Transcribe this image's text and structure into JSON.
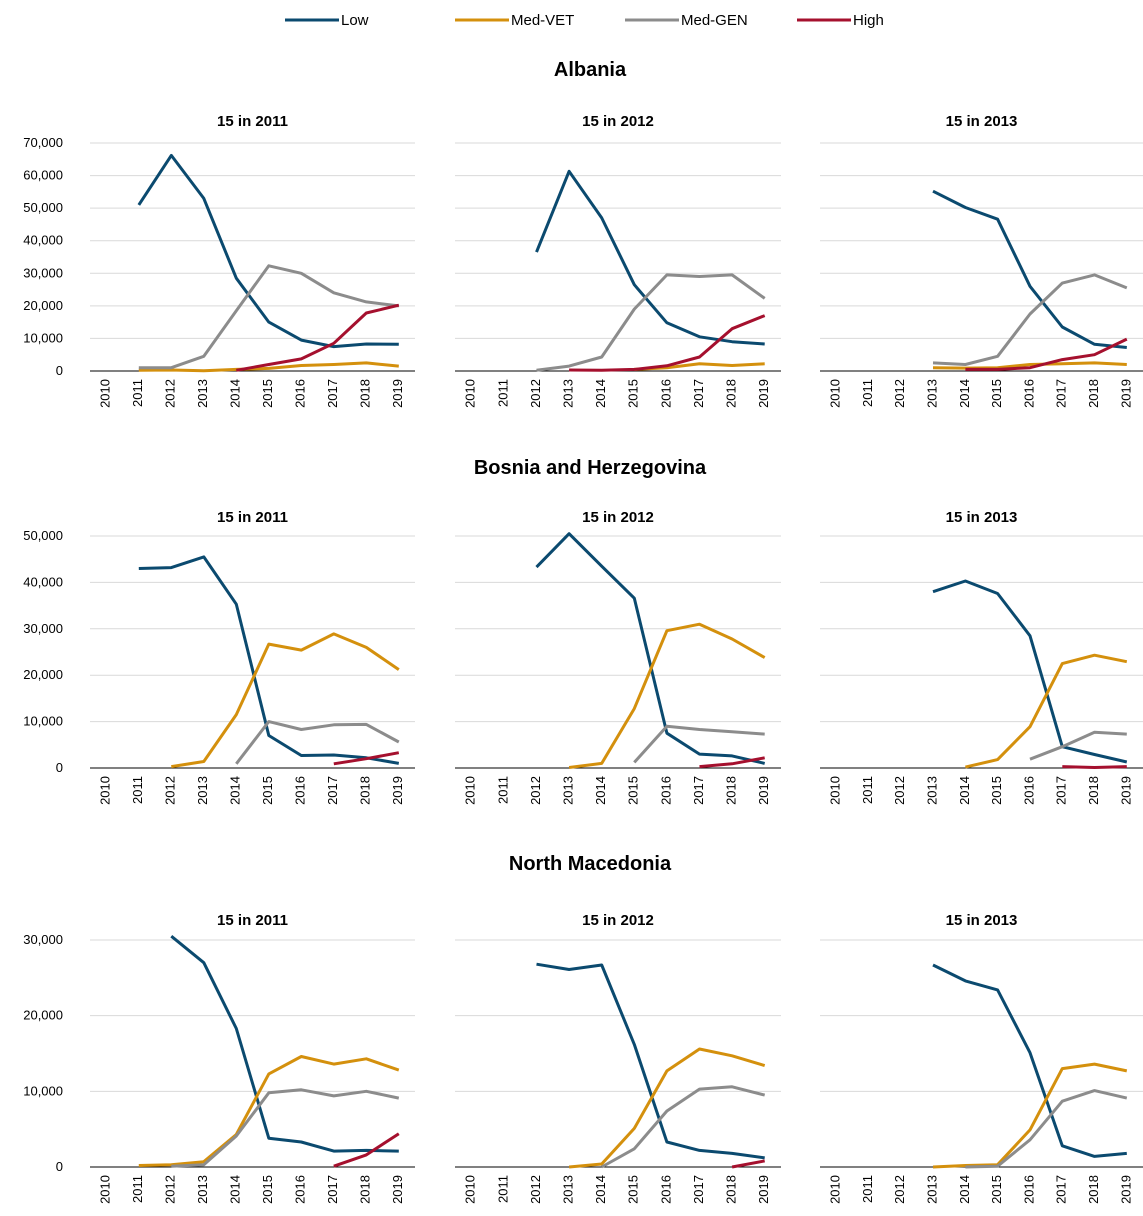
{
  "legend": [
    {
      "key": "low",
      "label": "Low",
      "color": "#0b4a6f"
    },
    {
      "key": "vet",
      "label": "Med-VET",
      "color": "#d4900d"
    },
    {
      "key": "gen",
      "label": "Med-GEN",
      "color": "#8c8c8c"
    },
    {
      "key": "high",
      "label": "High",
      "color": "#a5102e"
    }
  ],
  "chart_data": [
    {
      "type": "line",
      "country": "Albania",
      "ylim": [
        0,
        70000
      ],
      "yticks": [
        "0",
        "10,000",
        "20,000",
        "30,000",
        "40,000",
        "50,000",
        "60,000",
        "70,000"
      ],
      "x": [
        "2010",
        "2011",
        "2012",
        "2013",
        "2014",
        "2015",
        "2016",
        "2017",
        "2018",
        "2019"
      ],
      "panels": [
        {
          "title": "15 in 2011",
          "series": [
            {
              "name": "Low",
              "values": [
                null,
                51000,
                66200,
                53000,
                28500,
                15000,
                9500,
                7500,
                8300,
                8200
              ]
            },
            {
              "name": "Med-VET",
              "values": [
                null,
                200,
                300,
                100,
                500,
                800,
                1700,
                2000,
                2500,
                1500
              ]
            },
            {
              "name": "Med-GEN",
              "values": [
                null,
                1000,
                1000,
                4500,
                18500,
                32300,
                30000,
                24000,
                21200,
                20000
              ]
            },
            {
              "name": "High",
              "values": [
                null,
                null,
                null,
                null,
                200,
                2000,
                3700,
                8500,
                17800,
                20200
              ]
            }
          ]
        },
        {
          "title": "15 in 2012",
          "series": [
            {
              "name": "Low",
              "values": [
                null,
                null,
                36500,
                61300,
                47000,
                26500,
                14800,
                10500,
                9000,
                8300
              ]
            },
            {
              "name": "Med-VET",
              "values": [
                null,
                null,
                null,
                null,
                null,
                500,
                1000,
                2200,
                1700,
                2200
              ]
            },
            {
              "name": "Med-GEN",
              "values": [
                null,
                null,
                200,
                1500,
                4300,
                19000,
                29500,
                29000,
                29500,
                22300
              ]
            },
            {
              "name": "High",
              "values": [
                null,
                null,
                null,
                300,
                200,
                500,
                1600,
                4300,
                13000,
                17000
              ]
            }
          ]
        },
        {
          "title": "15 in 2013",
          "series": [
            {
              "name": "Low",
              "values": [
                null,
                null,
                null,
                55200,
                50200,
                46600,
                26000,
                13500,
                8200,
                7200
              ]
            },
            {
              "name": "Med-VET",
              "values": [
                null,
                null,
                null,
                1000,
                900,
                1000,
                2000,
                2200,
                2500,
                2000
              ]
            },
            {
              "name": "Med-GEN",
              "values": [
                null,
                null,
                null,
                2500,
                2000,
                4500,
                17500,
                27000,
                29500,
                25500
              ]
            },
            {
              "name": "High",
              "values": [
                null,
                null,
                null,
                null,
                500,
                500,
                1000,
                3500,
                5000,
                9800
              ]
            }
          ]
        }
      ]
    },
    {
      "type": "line",
      "country": "Bosnia and Herzegovina",
      "ylim": [
        0,
        50000
      ],
      "yticks": [
        "0",
        "10,000",
        "20,000",
        "30,000",
        "40,000",
        "50,000"
      ],
      "x": [
        "2010",
        "2011",
        "2012",
        "2013",
        "2014",
        "2015",
        "2016",
        "2017",
        "2018",
        "2019"
      ],
      "panels": [
        {
          "title": "15 in 2011",
          "series": [
            {
              "name": "Low",
              "values": [
                null,
                43000,
                43200,
                45500,
                35300,
                7000,
                2700,
                2800,
                2200,
                1000
              ]
            },
            {
              "name": "Med-VET",
              "values": [
                null,
                null,
                300,
                1400,
                11500,
                26700,
                25400,
                28900,
                26000,
                21200
              ]
            },
            {
              "name": "Med-GEN",
              "values": [
                null,
                null,
                null,
                null,
                900,
                10000,
                8300,
                9300,
                9400,
                5600
              ]
            },
            {
              "name": "High",
              "values": [
                null,
                null,
                null,
                null,
                null,
                null,
                null,
                900,
                2000,
                3300
              ]
            }
          ]
        },
        {
          "title": "15 in 2012",
          "series": [
            {
              "name": "Low",
              "values": [
                null,
                null,
                43300,
                50500,
                43500,
                36600,
                7500,
                3000,
                2600,
                1000
              ]
            },
            {
              "name": "Med-VET",
              "values": [
                null,
                null,
                null,
                100,
                1000,
                12800,
                29600,
                31000,
                27800,
                23800
              ]
            },
            {
              "name": "Med-GEN",
              "values": [
                null,
                null,
                null,
                null,
                null,
                1200,
                9000,
                8300,
                7800,
                7300
              ]
            },
            {
              "name": "High",
              "values": [
                null,
                null,
                null,
                null,
                null,
                null,
                null,
                300,
                900,
                2200
              ]
            }
          ]
        },
        {
          "title": "15 in 2013",
          "series": [
            {
              "name": "Low",
              "values": [
                null,
                null,
                null,
                38000,
                40300,
                37600,
                28500,
                4600,
                2900,
                1300
              ]
            },
            {
              "name": "Med-VET",
              "values": [
                null,
                null,
                null,
                null,
                200,
                1800,
                8900,
                22500,
                24300,
                22900
              ]
            },
            {
              "name": "Med-GEN",
              "values": [
                null,
                null,
                null,
                null,
                null,
                null,
                1900,
                4600,
                7700,
                7300
              ]
            },
            {
              "name": "High",
              "values": [
                null,
                null,
                null,
                null,
                null,
                null,
                null,
                300,
                100,
                300
              ]
            }
          ]
        }
      ]
    },
    {
      "type": "line",
      "country": "North Macedonia",
      "ylim": [
        0,
        30000
      ],
      "yticks": [
        "0",
        "10,000",
        "20,000",
        "30,000"
      ],
      "x": [
        "2010",
        "2011",
        "2012",
        "2013",
        "2014",
        "2015",
        "2016",
        "2017",
        "2018",
        "2019"
      ],
      "panels": [
        {
          "title": "15 in 2011",
          "series": [
            {
              "name": "Low",
              "values": [
                null,
                null,
                30500,
                27000,
                18300,
                3800,
                3300,
                2100,
                2200,
                2100
              ]
            },
            {
              "name": "Med-VET",
              "values": [
                null,
                200,
                300,
                700,
                4300,
                12300,
                14600,
                13600,
                14300,
                12800
              ]
            },
            {
              "name": "Med-GEN",
              "values": [
                null,
                null,
                100,
                300,
                4100,
                9800,
                10200,
                9400,
                10000,
                9100
              ]
            },
            {
              "name": "High",
              "values": [
                null,
                null,
                null,
                null,
                null,
                null,
                null,
                100,
                1600,
                4400
              ]
            }
          ]
        },
        {
          "title": "15 in 2012",
          "series": [
            {
              "name": "Low",
              "values": [
                null,
                null,
                26800,
                26100,
                26700,
                16200,
                3300,
                2200,
                1800,
                1200
              ]
            },
            {
              "name": "Med-VET",
              "values": [
                null,
                null,
                null,
                0,
                400,
                5100,
                12700,
                15600,
                14700,
                13400
              ]
            },
            {
              "name": "Med-GEN",
              "values": [
                null,
                null,
                null,
                null,
                0,
                2400,
                7400,
                10300,
                10600,
                9500
              ]
            },
            {
              "name": "High",
              "values": [
                null,
                null,
                null,
                null,
                null,
                null,
                null,
                null,
                0,
                800
              ]
            }
          ]
        },
        {
          "title": "15 in 2013",
          "series": [
            {
              "name": "Low",
              "values": [
                null,
                null,
                null,
                26700,
                24600,
                23400,
                15100,
                2800,
                1400,
                1800
              ]
            },
            {
              "name": "Med-VET",
              "values": [
                null,
                null,
                null,
                0,
                200,
                300,
                4900,
                13000,
                13600,
                12700
              ]
            },
            {
              "name": "Med-GEN",
              "values": [
                null,
                null,
                null,
                null,
                0,
                100,
                3600,
                8700,
                10100,
                9100
              ]
            },
            {
              "name": "High",
              "values": []
            }
          ]
        }
      ]
    }
  ]
}
